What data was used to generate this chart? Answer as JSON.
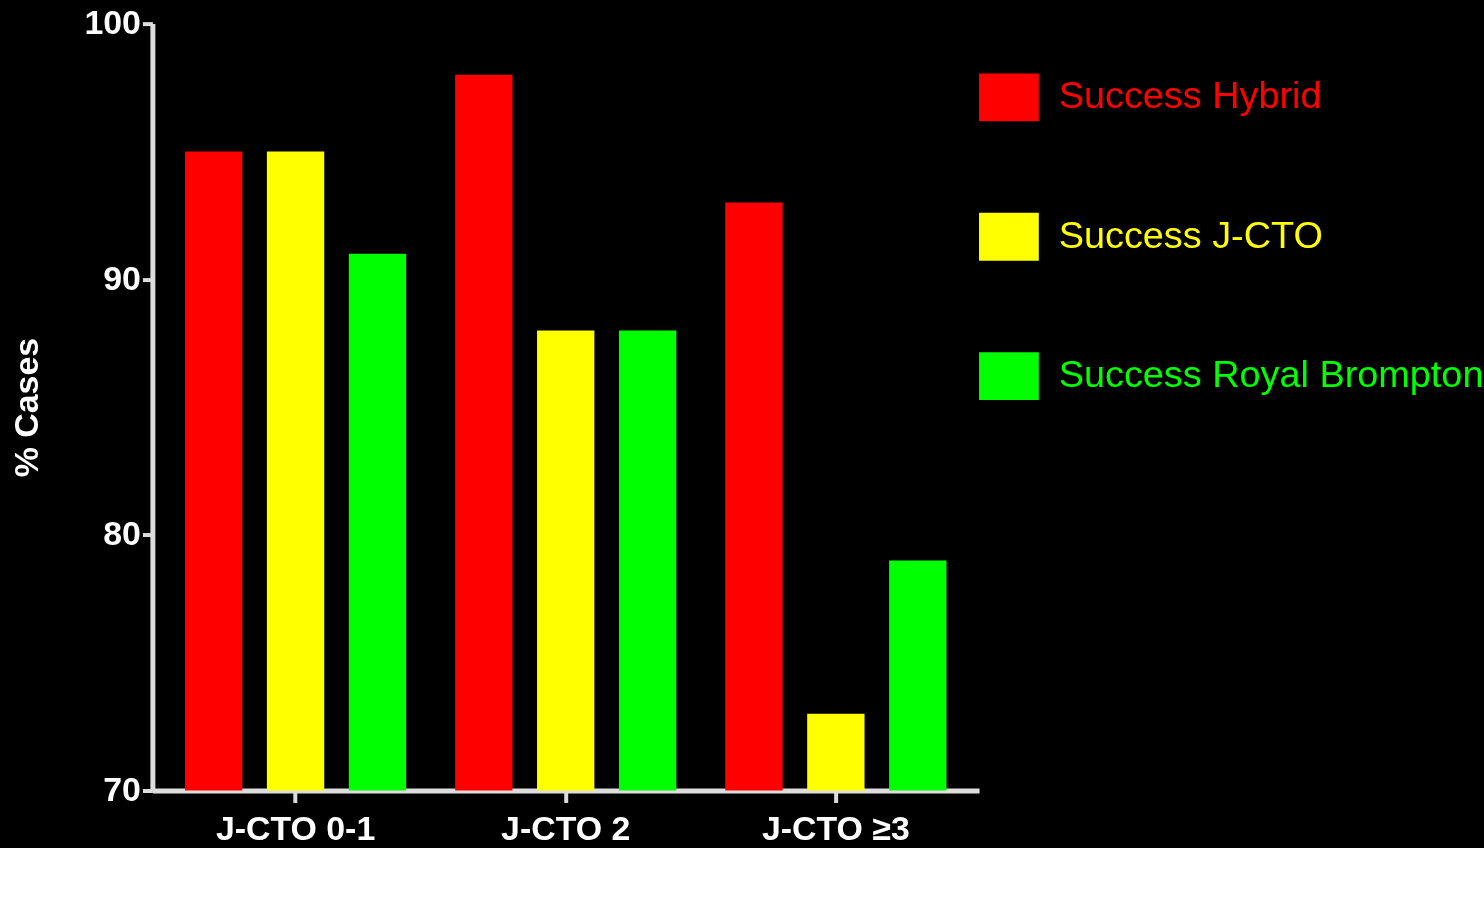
{
  "chart_data": {
    "type": "bar",
    "ylabel": "% Cases",
    "categories": [
      "J-CTO 0-1",
      "J-CTO 2",
      "J-CTO ≥3"
    ],
    "series": [
      {
        "name": "Success Hybrid",
        "color": "#ff0000",
        "values": [
          95,
          98,
          93
        ]
      },
      {
        "name": "Success J-CTO",
        "color": "#ffff00",
        "values": [
          95,
          88,
          73
        ]
      },
      {
        "name": "Success Royal Brompton",
        "color": "#00ff00",
        "values": [
          91,
          88,
          79
        ]
      }
    ],
    "ylim": [
      70,
      100
    ],
    "yticks": [
      70,
      80,
      90,
      100
    ],
    "grid": false,
    "legend": "top right"
  }
}
